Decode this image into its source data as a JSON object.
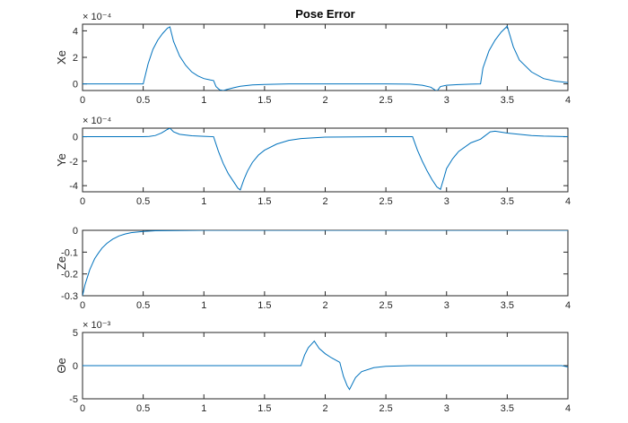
{
  "chart_data": [
    {
      "type": "line",
      "title": "Pose Error",
      "ylabel": "Xe",
      "exponent": "× 10⁻⁴",
      "xlim": [
        0,
        4
      ],
      "ylim": [
        -0.5,
        4.5
      ],
      "xticks": [
        0,
        0.5,
        1,
        1.5,
        2,
        2.5,
        3,
        3.5,
        4
      ],
      "xtick_labels": [
        "0",
        "0.5",
        "1",
        "1.5",
        "2",
        "2.5",
        "3",
        "3.5",
        "4"
      ],
      "yticks": [
        0,
        2,
        4
      ],
      "ytick_labels": [
        "0",
        "2",
        "4"
      ],
      "series": [
        {
          "color": "#0072bd",
          "x": [
            0,
            0.5,
            0.54,
            0.58,
            0.62,
            0.66,
            0.7,
            0.72,
            0.75,
            0.8,
            0.85,
            0.9,
            0.95,
            1.0,
            1.05,
            1.08,
            1.1,
            1.13,
            1.16,
            1.2,
            1.25,
            1.3,
            1.4,
            1.5,
            1.7,
            2.0,
            2.5,
            2.7,
            2.8,
            2.87,
            2.92,
            2.95,
            3.0,
            3.1,
            3.2,
            3.28,
            3.3,
            3.35,
            3.4,
            3.45,
            3.5,
            3.55,
            3.6,
            3.7,
            3.8,
            3.9,
            4.0
          ],
          "y": [
            0,
            0,
            1.5,
            2.6,
            3.3,
            3.8,
            4.2,
            4.3,
            3.2,
            2.1,
            1.4,
            0.9,
            0.6,
            0.4,
            0.3,
            0.25,
            -0.2,
            -0.45,
            -0.5,
            -0.4,
            -0.28,
            -0.18,
            -0.08,
            -0.04,
            0,
            0,
            0,
            -0.02,
            -0.1,
            -0.25,
            -0.55,
            -0.2,
            -0.1,
            -0.05,
            -0.02,
            0,
            1.2,
            2.5,
            3.3,
            3.9,
            4.35,
            2.8,
            1.8,
            0.9,
            0.4,
            0.2,
            0.1
          ]
        }
      ]
    },
    {
      "type": "line",
      "title": "",
      "ylabel": "Ye",
      "exponent": "× 10⁻⁴",
      "xlim": [
        0,
        4
      ],
      "ylim": [
        -4.5,
        0.7
      ],
      "xticks": [
        0,
        0.5,
        1,
        1.5,
        2,
        2.5,
        3,
        3.5,
        4
      ],
      "xtick_labels": [
        "0",
        "0.5",
        "1",
        "1.5",
        "2",
        "2.5",
        "3",
        "3.5",
        "4"
      ],
      "yticks": [
        -4,
        -2,
        0
      ],
      "ytick_labels": [
        "-4",
        "-2",
        "0"
      ],
      "series": [
        {
          "color": "#0072bd",
          "x": [
            0,
            0.5,
            0.55,
            0.6,
            0.65,
            0.7,
            0.72,
            0.75,
            0.8,
            0.9,
            1.0,
            1.08,
            1.12,
            1.16,
            1.2,
            1.24,
            1.28,
            1.3,
            1.33,
            1.36,
            1.4,
            1.45,
            1.5,
            1.6,
            1.7,
            1.8,
            2.0,
            2.5,
            2.72,
            2.76,
            2.8,
            2.84,
            2.88,
            2.92,
            2.95,
            2.98,
            3.0,
            3.05,
            3.1,
            3.2,
            3.28,
            3.32,
            3.36,
            3.4,
            3.5,
            3.6,
            3.7,
            3.8,
            4.0
          ],
          "y": [
            0,
            0,
            0.02,
            0.1,
            0.3,
            0.6,
            0.7,
            0.4,
            0.2,
            0.08,
            0.03,
            0,
            -1.2,
            -2.2,
            -3.0,
            -3.6,
            -4.2,
            -4.35,
            -3.5,
            -2.8,
            -2.1,
            -1.5,
            -1.1,
            -0.6,
            -0.3,
            -0.15,
            -0.03,
            0,
            0,
            -1.1,
            -2.0,
            -2.8,
            -3.5,
            -4.1,
            -4.3,
            -3.3,
            -2.6,
            -1.8,
            -1.2,
            -0.5,
            -0.2,
            0.1,
            0.4,
            0.45,
            0.3,
            0.2,
            0.1,
            0.05,
            0
          ]
        }
      ]
    },
    {
      "type": "line",
      "title": "",
      "ylabel": "Ze",
      "exponent": "",
      "xlim": [
        0,
        4
      ],
      "ylim": [
        -0.3,
        0
      ],
      "xticks": [
        0,
        0.5,
        1,
        1.5,
        2,
        2.5,
        3,
        3.5,
        4
      ],
      "xtick_labels": [
        "0",
        "0.5",
        "1",
        "1.5",
        "2",
        "2.5",
        "3",
        "3.5",
        "4"
      ],
      "yticks": [
        -0.3,
        -0.2,
        -0.1,
        0
      ],
      "ytick_labels": [
        "-0.3",
        "-0.2",
        "-0.1",
        "0"
      ],
      "series": [
        {
          "color": "#0072bd",
          "x": [
            0,
            0.02,
            0.04,
            0.06,
            0.08,
            0.1,
            0.13,
            0.16,
            0.2,
            0.25,
            0.3,
            0.35,
            0.4,
            0.5,
            0.6,
            0.8,
            1.0,
            2.0,
            3.0,
            4.0
          ],
          "y": [
            -0.3,
            -0.25,
            -0.215,
            -0.18,
            -0.155,
            -0.13,
            -0.105,
            -0.082,
            -0.06,
            -0.04,
            -0.026,
            -0.017,
            -0.011,
            -0.005,
            -0.002,
            -0.001,
            0,
            0,
            0,
            0
          ]
        }
      ]
    },
    {
      "type": "line",
      "title": "",
      "ylabel": "Θe",
      "exponent": "× 10⁻³",
      "xlim": [
        0,
        4
      ],
      "ylim": [
        -5,
        5
      ],
      "xticks": [
        0,
        0.5,
        1,
        1.5,
        2,
        2.5,
        3,
        3.5,
        4
      ],
      "xtick_labels": [
        "0",
        "0.5",
        "1",
        "1.5",
        "2",
        "2.5",
        "3",
        "3.5",
        "4"
      ],
      "yticks": [
        -5,
        0,
        5
      ],
      "ytick_labels": [
        "-5",
        "0",
        "5"
      ],
      "series": [
        {
          "color": "#0072bd",
          "x": [
            0,
            1.8,
            1.83,
            1.86,
            1.89,
            1.91,
            1.95,
            2.0,
            2.05,
            2.1,
            2.12,
            2.15,
            2.18,
            2.2,
            2.25,
            2.3,
            2.4,
            2.5,
            2.7,
            3.0,
            3.5,
            3.95,
            4.0
          ],
          "y": [
            0,
            0,
            1.6,
            2.7,
            3.3,
            3.7,
            2.6,
            1.8,
            1.2,
            0.7,
            0.5,
            -1.6,
            -3.0,
            -3.6,
            -1.8,
            -0.9,
            -0.3,
            -0.1,
            0,
            0,
            0,
            0,
            -0.2
          ]
        }
      ]
    }
  ]
}
